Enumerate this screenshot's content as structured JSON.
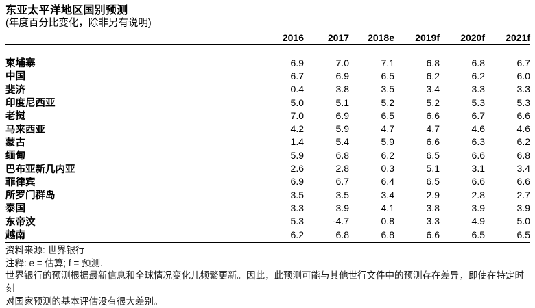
{
  "title": "东亚太平洋地区国别预测",
  "subtitle": "(年度百分比变化，除非另有说明)",
  "table": {
    "year_headers": [
      "2016",
      "2017",
      "2018e",
      "2019f",
      "2020f",
      "2021f"
    ],
    "rows": [
      {
        "label": "柬埔寨",
        "values": [
          "6.9",
          "7.0",
          "7.1",
          "6.8",
          "6.8",
          "6.7"
        ]
      },
      {
        "label": "中国",
        "values": [
          "6.7",
          "6.9",
          "6.5",
          "6.2",
          "6.2",
          "6.0"
        ]
      },
      {
        "label": "斐济",
        "values": [
          "0.4",
          "3.8",
          "3.5",
          "3.4",
          "3.3",
          "3.3"
        ]
      },
      {
        "label": "印度尼西亚",
        "values": [
          "5.0",
          "5.1",
          "5.2",
          "5.2",
          "5.3",
          "5.3"
        ]
      },
      {
        "label": "老挝",
        "values": [
          "7.0",
          "6.9",
          "6.5",
          "6.6",
          "6.7",
          "6.6"
        ]
      },
      {
        "label": "马来西亚",
        "values": [
          "4.2",
          "5.9",
          "4.7",
          "4.7",
          "4.6",
          "4.6"
        ]
      },
      {
        "label": "蒙古",
        "values": [
          "1.4",
          "5.4",
          "5.9",
          "6.6",
          "6.3",
          "6.2"
        ]
      },
      {
        "label": "缅甸",
        "values": [
          "5.9",
          "6.8",
          "6.2",
          "6.5",
          "6.6",
          "6.8"
        ]
      },
      {
        "label": "巴布亚新几内亚",
        "values": [
          "2.6",
          "2.8",
          "0.3",
          "5.1",
          "3.1",
          "3.4"
        ]
      },
      {
        "label": "菲律宾",
        "values": [
          "6.9",
          "6.7",
          "6.4",
          "6.5",
          "6.6",
          "6.6"
        ]
      },
      {
        "label": "所罗门群岛",
        "values": [
          "3.5",
          "3.5",
          "3.4",
          "2.9",
          "2.8",
          "2.7"
        ]
      },
      {
        "label": "泰国",
        "values": [
          "3.3",
          "3.9",
          "4.1",
          "3.8",
          "3.9",
          "3.9"
        ]
      },
      {
        "label": "东帝汶",
        "values": [
          "5.3",
          "-4.7",
          "0.8",
          "3.3",
          "4.9",
          "5.0"
        ]
      },
      {
        "label": "越南",
        "values": [
          "6.2",
          "6.8",
          "6.8",
          "6.6",
          "6.5",
          "6.5"
        ]
      }
    ]
  },
  "footer": {
    "source": "资料来源: 世界银行",
    "notes": "注释: e = 估算; f = 预测.",
    "disclaimer_line1": "世界银行的预测根据最新信息和全球情况变化儿频繁更新。因此，此预测可能与其他世行文件中的预测存在差异，即使在特定时刻",
    "disclaimer_line2": "对国家预测的基本评估没有很大差别。"
  },
  "colors": {
    "text": "#000000",
    "footer_text": "#1a1a1a",
    "background": "#ffffff",
    "rule": "#000000"
  }
}
